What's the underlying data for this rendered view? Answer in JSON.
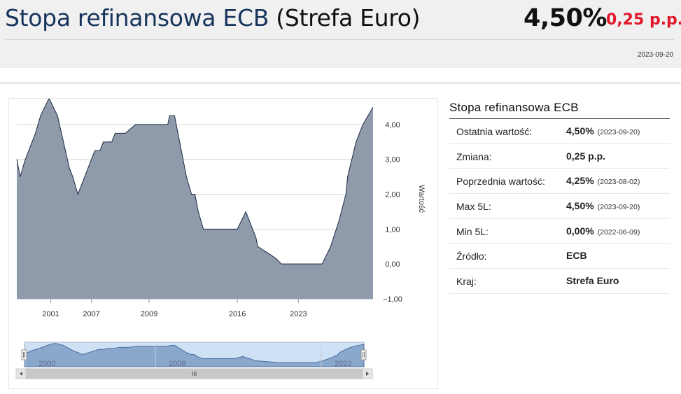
{
  "header": {
    "title_main": "Stopa refinansowa ECB",
    "title_region": "(Strefa Euro)",
    "value": "4,50%",
    "change": "0,25 p.p.",
    "date": "2023-09-20"
  },
  "table": {
    "title": "Stopa refinansowa ECB",
    "rows": [
      {
        "label": "Ostatnia wartość:",
        "value": "4,50%",
        "date": "(2023-09-20)"
      },
      {
        "label": "Zmiana:",
        "value": "0,25 p.p.",
        "date": ""
      },
      {
        "label": "Poprzednia wartość:",
        "value": "4,25%",
        "date": "(2023-08-02)"
      },
      {
        "label": "Max 5L:",
        "value": "4,50%",
        "date": "(2023-09-20)"
      },
      {
        "label": "Min 5L:",
        "value": "0,00%",
        "date": "(2022-06-09)"
      },
      {
        "label": "Źródło:",
        "value": "ECB",
        "date": ""
      },
      {
        "label": "Kraj:",
        "value": "Strefa Euro",
        "date": ""
      }
    ]
  },
  "colors": {
    "area_fill": "#8f9bab",
    "area_line": "#1b2a44",
    "navigator_fill": "#7e9cc4",
    "navigator_mask": "#cfe1f5",
    "change_red": "#e3182d",
    "title_navy": "#17345c"
  },
  "chart_data": {
    "type": "area",
    "ylabel": "Wartość",
    "ylim": [
      -1,
      4.5
    ],
    "y_ticks": [
      "4,00",
      "3,00",
      "2,00",
      "1,00",
      "0,00",
      "−1,00"
    ],
    "y_tick_values": [
      4,
      3,
      2,
      1,
      0,
      -1
    ],
    "x_tick_labels": [
      "2001",
      "2007",
      "2009",
      "2016",
      "2023"
    ],
    "x_tick_values": [
      2000.0,
      2002.4,
      2005.8,
      2011.0,
      2014.6
    ],
    "xlim": [
      1998,
      2019
    ],
    "navigator_labels": [
      "2000",
      "2008",
      "2022"
    ],
    "series": [
      {
        "x": [
          1998.0,
          1998.2,
          1998.5,
          1999.1,
          1999.4,
          1999.9,
          2000.4,
          2001.1,
          2001.3,
          2001.6,
          2002.2,
          2002.6,
          2002.9,
          2003.1,
          2003.6,
          2003.8,
          2004.4,
          2005.0,
          2005.5,
          2006.0,
          2006.6,
          2006.9,
          2007.0,
          2007.3,
          2007.7,
          2008.0,
          2008.3,
          2008.5,
          2008.7,
          2009.0,
          2009.4,
          2010.4,
          2011.0,
          2011.5,
          2011.9,
          2012.1,
          2012.2,
          2013.0,
          2013.3,
          2013.5,
          2013.6,
          2013.7,
          2014.0,
          2014.2,
          2014.5,
          2015.0,
          2015.3,
          2015.7,
          2016.0,
          2016.5,
          2017.0,
          2017.4,
          2017.5,
          2018.0,
          2018.2,
          2018.4,
          2019.0
        ],
        "y": [
          3.0,
          2.5,
          3.0,
          3.75,
          4.25,
          4.75,
          4.25,
          2.75,
          2.5,
          2.0,
          2.75,
          3.25,
          3.25,
          3.5,
          3.5,
          3.75,
          3.75,
          4.0,
          4.0,
          4.0,
          4.0,
          4.0,
          4.25,
          4.25,
          3.25,
          2.5,
          2.0,
          2.0,
          1.5,
          1.0,
          1.0,
          1.0,
          1.0,
          1.5,
          1.0,
          0.75,
          0.5,
          0.25,
          0.15,
          0.05,
          0.0,
          0.0,
          0.0,
          0.0,
          0.0,
          0.0,
          0.0,
          0.0,
          0.0,
          0.5,
          1.25,
          2.0,
          2.5,
          3.5,
          3.75,
          4.0,
          4.5
        ]
      }
    ],
    "grid": true
  }
}
